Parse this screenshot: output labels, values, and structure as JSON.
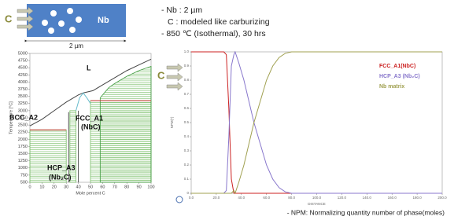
{
  "schematic": {
    "left_label": "C",
    "block_label": "Nb",
    "width_label": "2 µm",
    "notes": [
      "- Nb : 2 µm",
      "C : modeled like carburizing",
      "- 850 ℃ (Isothermal), 30 hrs"
    ]
  },
  "footnote": "- NPM: Normalizing quantity number of phase(moles)",
  "chart_data": [
    {
      "type": "line",
      "x_label": "Mole percent C",
      "y_label": "Temperature [°C]",
      "xlim": [
        0,
        100
      ],
      "xticks": [
        0,
        10,
        20,
        30,
        40,
        50,
        60,
        70,
        80,
        90,
        100
      ],
      "ylim": [
        500,
        5000
      ],
      "yticks": [
        500,
        750,
        1000,
        1250,
        1500,
        1750,
        2000,
        2250,
        2500,
        2750,
        3000,
        3250,
        3500,
        3750,
        4000,
        4250,
        4500,
        4750,
        5000
      ],
      "annotations": [
        "L",
        "BCC_A2",
        "FCC_A1",
        "(NbC)",
        "HCP_A3",
        "(Nb₂C)"
      ],
      "series": [
        {
          "color": "#7bbf6a",
          "hatch": true,
          "x": [
            0,
            30
          ],
          "values": [
            2330,
            2330
          ]
        },
        {
          "color": "#7bbf6a",
          "hatch": true,
          "x": [
            33,
            38
          ],
          "values": [
            3000,
            3000
          ]
        },
        {
          "color": "#7bbf6a",
          "hatch": true,
          "x": [
            50,
            100
          ],
          "values": [
            3350,
            3350
          ]
        },
        {
          "color": "#3f9a3f",
          "hatch": true,
          "x": [
            58,
            65,
            70,
            80,
            90,
            100
          ],
          "values": [
            3450,
            3800,
            3950,
            4200,
            4400,
            4550
          ]
        },
        {
          "color": "#444444",
          "x": [
            0,
            10,
            20,
            30,
            40,
            44
          ],
          "values": [
            2470,
            2700,
            3000,
            3300,
            3550,
            3620
          ]
        },
        {
          "color": "#444444",
          "x": [
            44,
            52,
            60,
            70,
            80,
            90,
            100
          ],
          "values": [
            3620,
            3700,
            3900,
            4150,
            4400,
            4600,
            4800
          ]
        },
        {
          "color": "#66bbcc",
          "x": [
            38,
            41,
            44,
            47,
            50
          ],
          "values": [
            3000,
            3450,
            3620,
            3450,
            3250
          ]
        },
        {
          "color": "#cc3333",
          "x": [
            0,
            30
          ],
          "values": [
            2330,
            2330
          ]
        },
        {
          "color": "#cc3333",
          "x": [
            50,
            100
          ],
          "values": [
            3350,
            3350
          ]
        },
        {
          "color": "#555555",
          "x": [
            32,
            32
          ],
          "values": [
            500,
            2950
          ]
        },
        {
          "color": "#555555",
          "x": [
            40,
            40
          ],
          "values": [
            500,
            3000
          ]
        }
      ]
    },
    {
      "type": "line",
      "x_label": "DISTANCE",
      "y_label": "NPM(*)",
      "legend": "upper right",
      "xlim": [
        0,
        200
      ],
      "xticks": [
        {
          "value": 0,
          "label": "0.0"
        },
        {
          "value": 20,
          "label": "20.0"
        },
        {
          "value": 40,
          "label": "40.0"
        },
        {
          "value": 60,
          "label": "60.0"
        },
        {
          "value": 80,
          "label": "80.0"
        },
        {
          "value": 100,
          "label": "100.0"
        },
        {
          "value": 120,
          "label": "120.0"
        },
        {
          "value": 140,
          "label": "140.0"
        },
        {
          "value": 160,
          "label": "160.0"
        },
        {
          "value": 180,
          "label": "180.0"
        },
        {
          "value": 200,
          "label": "200.0"
        }
      ],
      "ylim": [
        0,
        1
      ],
      "yticks": [
        0,
        0.1,
        0.2,
        0.3,
        0.4,
        0.5,
        0.6,
        0.7,
        0.8,
        0.9,
        {
          "value": 1,
          "label": "1.0"
        }
      ],
      "series": [
        {
          "name": "FCC_A1(NbC)",
          "color": "#cc2222",
          "x": [
            0,
            10,
            20,
            26,
            28,
            30,
            32,
            34,
            35,
            38,
            42,
            46,
            50,
            55,
            60,
            65,
            70,
            75,
            80,
            85,
            90,
            100,
            120,
            140,
            160,
            180,
            200
          ],
          "values": [
            1,
            1,
            1,
            1,
            0.98,
            0.6,
            0.1,
            0,
            0,
            0,
            0,
            0,
            0,
            0,
            0,
            0,
            0,
            0,
            0,
            0,
            0,
            0,
            0,
            0,
            0,
            0,
            0
          ]
        },
        {
          "name": "HCP_A3 (Nb₂C)",
          "color": "#8877cc",
          "x": [
            0,
            10,
            20,
            26,
            28,
            30,
            32,
            34,
            35,
            38,
            42,
            46,
            50,
            55,
            60,
            65,
            70,
            75,
            80,
            85,
            90,
            100,
            120,
            140,
            160,
            180,
            200
          ],
          "values": [
            0,
            0,
            0,
            0,
            0.02,
            0.4,
            0.9,
            0.98,
            1,
            0.92,
            0.8,
            0.65,
            0.5,
            0.35,
            0.2,
            0.1,
            0.04,
            0.01,
            0,
            0,
            0,
            0,
            0,
            0,
            0,
            0,
            0
          ]
        },
        {
          "name": "Nb matrix",
          "color": "#a0a050",
          "x": [
            0,
            10,
            20,
            26,
            28,
            30,
            32,
            34,
            35,
            38,
            42,
            46,
            50,
            55,
            60,
            65,
            70,
            75,
            80,
            85,
            90,
            100,
            120,
            140,
            160,
            180,
            200
          ],
          "values": [
            0,
            0,
            0,
            0,
            0,
            0,
            0,
            0.02,
            0,
            0.08,
            0.2,
            0.35,
            0.5,
            0.65,
            0.8,
            0.9,
            0.96,
            0.99,
            1,
            1,
            1,
            1,
            1,
            1,
            1,
            1,
            1
          ]
        }
      ]
    }
  ]
}
